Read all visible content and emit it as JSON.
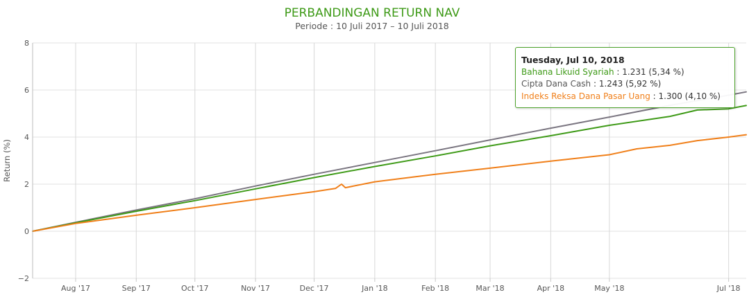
{
  "chart_data": {
    "type": "line",
    "title": "PERBANDINGAN RETURN NAV",
    "subtitle": "Periode : 10 Juli 2017 – 10 Juli 2018",
    "ylabel": "Return (%)",
    "xlabel": "",
    "ylim": [
      -2,
      8
    ],
    "yticks": [
      -2,
      0,
      2,
      4,
      6,
      8
    ],
    "xlim": [
      "2017-07-10",
      "2018-07-10"
    ],
    "xticks": [
      {
        "date": "2017-08-01",
        "label": "Aug '17"
      },
      {
        "date": "2017-09-01",
        "label": "Sep '17"
      },
      {
        "date": "2017-10-01",
        "label": "Oct '17"
      },
      {
        "date": "2017-11-01",
        "label": "Nov '17"
      },
      {
        "date": "2017-12-01",
        "label": "Dec '17"
      },
      {
        "date": "2018-01-01",
        "label": "Jan '18"
      },
      {
        "date": "2018-02-01",
        "label": "Feb '18"
      },
      {
        "date": "2018-03-01",
        "label": "Mar '18"
      },
      {
        "date": "2018-04-01",
        "label": "Apr '18"
      },
      {
        "date": "2018-05-01",
        "label": "May '18"
      },
      {
        "date": "2018-07-01",
        "label": "Jul '18"
      }
    ],
    "grid": true,
    "legend": "none",
    "series": [
      {
        "name": "Cipta Dana Cash",
        "color": "#7a7580",
        "points": [
          [
            "2017-07-10",
            0.0
          ],
          [
            "2017-08-01",
            0.38
          ],
          [
            "2017-09-01",
            0.9
          ],
          [
            "2017-10-01",
            1.38
          ],
          [
            "2017-11-01",
            1.92
          ],
          [
            "2017-12-01",
            2.42
          ],
          [
            "2018-01-01",
            2.92
          ],
          [
            "2018-02-01",
            3.42
          ],
          [
            "2018-03-01",
            3.88
          ],
          [
            "2018-04-01",
            4.38
          ],
          [
            "2018-05-01",
            4.85
          ],
          [
            "2018-06-01",
            5.35
          ],
          [
            "2018-07-01",
            5.78
          ],
          [
            "2018-07-10",
            5.92
          ]
        ]
      },
      {
        "name": "Bahana Likuid Syariah",
        "color": "#3e9a17",
        "points": [
          [
            "2017-07-10",
            0.0
          ],
          [
            "2017-08-01",
            0.36
          ],
          [
            "2017-09-01",
            0.85
          ],
          [
            "2017-10-01",
            1.3
          ],
          [
            "2017-11-01",
            1.8
          ],
          [
            "2017-12-01",
            2.28
          ],
          [
            "2018-01-01",
            2.75
          ],
          [
            "2018-02-01",
            3.2
          ],
          [
            "2018-03-01",
            3.63
          ],
          [
            "2018-04-01",
            4.06
          ],
          [
            "2018-05-01",
            4.5
          ],
          [
            "2018-06-01",
            4.88
          ],
          [
            "2018-06-15",
            5.15
          ],
          [
            "2018-07-01",
            5.2
          ],
          [
            "2018-07-10",
            5.34
          ]
        ]
      },
      {
        "name": "Indeks Reksa Dana Pasar Uang",
        "color": "#f07f19",
        "points": [
          [
            "2017-07-10",
            0.0
          ],
          [
            "2017-08-01",
            0.33
          ],
          [
            "2017-09-01",
            0.68
          ],
          [
            "2017-10-01",
            1.0
          ],
          [
            "2017-11-01",
            1.35
          ],
          [
            "2017-12-01",
            1.68
          ],
          [
            "2017-12-12",
            1.82
          ],
          [
            "2017-12-15",
            2.0
          ],
          [
            "2017-12-17",
            1.85
          ],
          [
            "2018-01-01",
            2.1
          ],
          [
            "2018-02-01",
            2.42
          ],
          [
            "2018-03-01",
            2.68
          ],
          [
            "2018-04-01",
            2.98
          ],
          [
            "2018-05-01",
            3.25
          ],
          [
            "2018-05-15",
            3.5
          ],
          [
            "2018-06-01",
            3.65
          ],
          [
            "2018-06-15",
            3.85
          ],
          [
            "2018-07-01",
            4.0
          ],
          [
            "2018-07-10",
            4.1
          ]
        ]
      }
    ]
  },
  "tooltip": {
    "date": "Tuesday, Jul 10, 2018",
    "rows": [
      {
        "name": "Bahana Likuid Syariah",
        "sep": " : ",
        "value": "1.231 (5,34 %)",
        "color": "#3e9a17"
      },
      {
        "name": "Cipta Dana Cash",
        "sep": " : ",
        "value": "1.243 (5,92 %)",
        "color": "#555555"
      },
      {
        "name": "Indeks Reksa Dana Pasar Uang",
        "sep": " : ",
        "value": "1.300 (4,10 %)",
        "color": "#f07f19"
      }
    ]
  }
}
